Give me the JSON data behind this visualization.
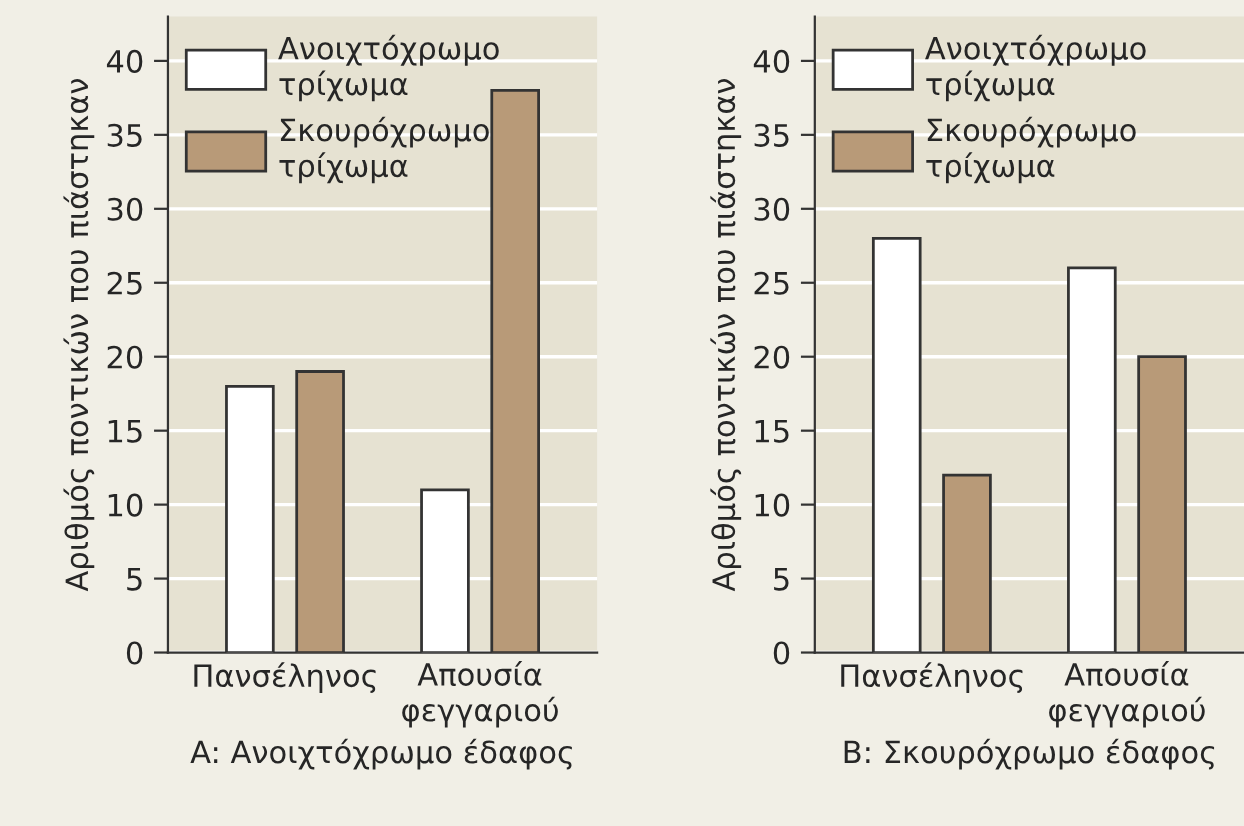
{
  "chart_data": [
    {
      "type": "bar",
      "xlabel": "A: Ανοιχτόχρωμο έδαφος",
      "ylabel": "Αριθμός ποντικών που πιάστηκαν",
      "categories": [
        "Πανσέληνος",
        "Απουσία\nφεγγαριού"
      ],
      "series": [
        {
          "name": "Ανοιχτόχρωμο\nτρίχωμα",
          "color": "#ffffff",
          "values": [
            18,
            11
          ]
        },
        {
          "name": "Σκουρόχρωμο\nτρίχωμα",
          "color": "#b89a78",
          "values": [
            19,
            38
          ]
        }
      ],
      "ylim": [
        0,
        43
      ],
      "yticks": [
        0,
        5,
        10,
        15,
        20,
        25,
        30,
        35,
        40
      ],
      "grid": "y",
      "legend": "top left"
    },
    {
      "type": "bar",
      "xlabel": "B: Σκουρόχρωμο έδαφος",
      "ylabel": "Αριθμός ποντικών που πιάστηκαν",
      "categories": [
        "Πανσέληνος",
        "Απουσία\nφεγγαριού"
      ],
      "series": [
        {
          "name": "Ανοιχτόχρωμο\nτρίχωμα",
          "color": "#ffffff",
          "values": [
            28,
            26
          ]
        },
        {
          "name": "Σκουρόχρωμο\nτρίχωμα",
          "color": "#b89a78",
          "values": [
            12,
            20
          ]
        }
      ],
      "ylim": [
        0,
        43
      ],
      "yticks": [
        0,
        5,
        10,
        15,
        20,
        25,
        30,
        35,
        40
      ],
      "grid": "y",
      "legend": "top left"
    }
  ]
}
